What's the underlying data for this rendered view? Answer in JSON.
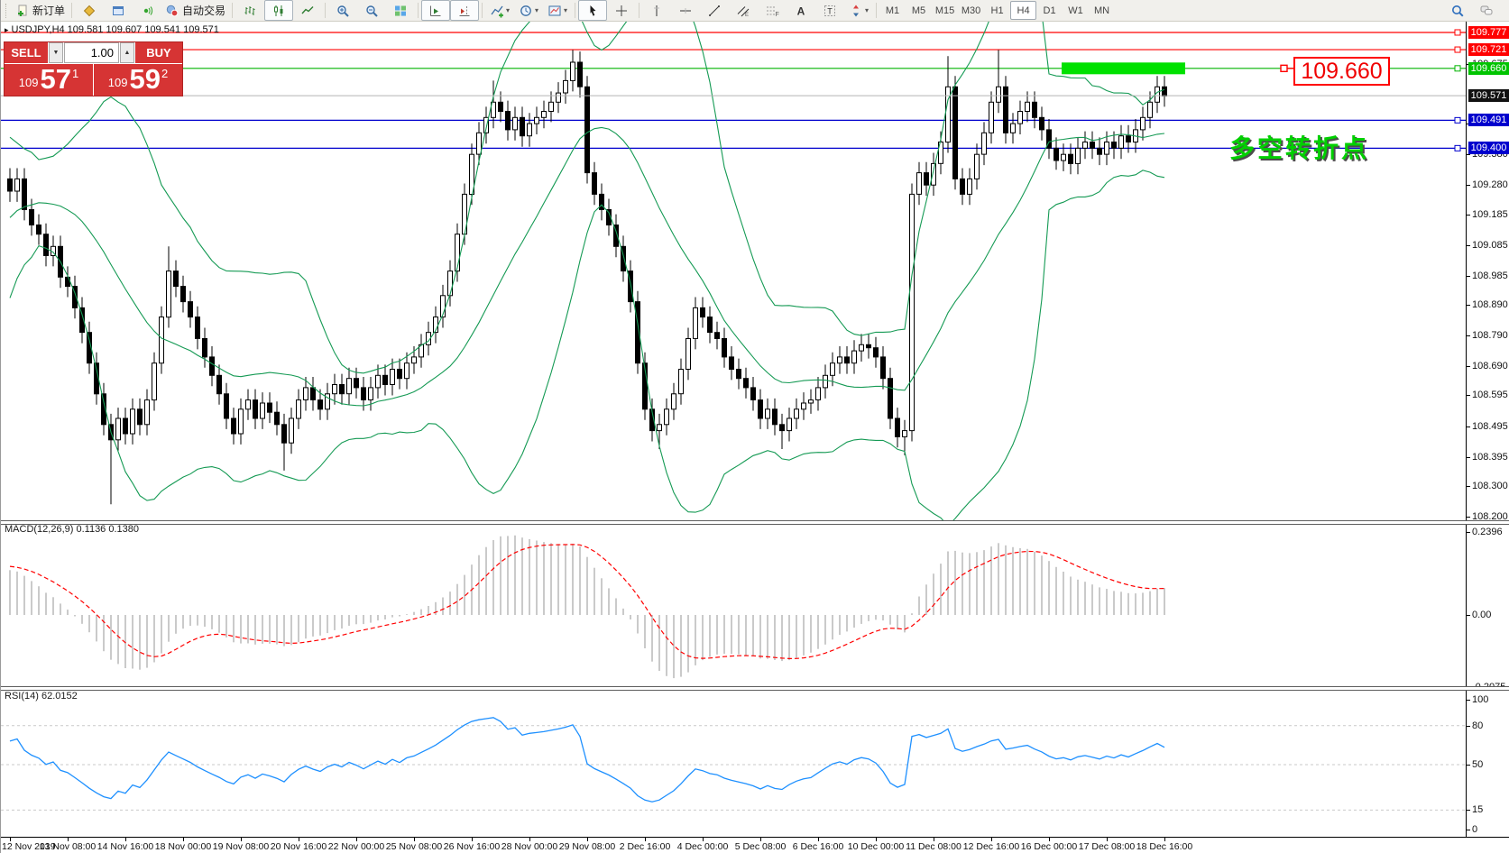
{
  "toolbar": {
    "groups": [
      {
        "items": [
          {
            "name": "new-order-button",
            "icon": "doc-plus",
            "label": "新订单"
          }
        ]
      },
      {
        "items": [
          {
            "name": "market-watch-button",
            "icon": "gold-book"
          },
          {
            "name": "data-window-button",
            "icon": "blue-window"
          },
          {
            "name": "navigator-button",
            "icon": "signal"
          },
          {
            "name": "autotrading-button",
            "icon": "autotrade",
            "label": "自动交易"
          }
        ]
      },
      {
        "items": [
          {
            "name": "bar-chart-button",
            "icon": "bars"
          },
          {
            "name": "candle-chart-button",
            "icon": "candles",
            "active": true
          },
          {
            "name": "line-chart-button",
            "icon": "linechart"
          }
        ]
      },
      {
        "items": [
          {
            "name": "zoom-in-button",
            "icon": "zoom-in"
          },
          {
            "name": "zoom-out-button",
            "icon": "zoom-out"
          },
          {
            "name": "tile-windows-button",
            "icon": "tiles"
          }
        ]
      },
      {
        "items": [
          {
            "name": "auto-scroll-button",
            "icon": "autoscroll",
            "active": true
          },
          {
            "name": "chart-shift-button",
            "icon": "shift",
            "active": true
          }
        ]
      },
      {
        "items": [
          {
            "name": "indicators-button",
            "icon": "indicator",
            "dropdown": true
          },
          {
            "name": "periods-button",
            "icon": "clock",
            "dropdown": true
          },
          {
            "name": "templates-button",
            "icon": "template",
            "dropdown": true
          }
        ]
      },
      {
        "items": [
          {
            "name": "cursor-button",
            "icon": "cursor",
            "active": true
          },
          {
            "name": "crosshair-button",
            "icon": "crosshair"
          }
        ]
      },
      {
        "items": [
          {
            "name": "vline-button",
            "icon": "vline"
          },
          {
            "name": "hline-button",
            "icon": "hline"
          },
          {
            "name": "trendline-button",
            "icon": "tline"
          },
          {
            "name": "channel-button",
            "icon": "channel"
          },
          {
            "name": "fibonacci-button",
            "icon": "fibo"
          },
          {
            "name": "text-button",
            "icon": "textA"
          },
          {
            "name": "label-button",
            "icon": "textT"
          },
          {
            "name": "arrows-button",
            "icon": "arrows",
            "dropdown": true
          }
        ]
      }
    ],
    "timeframes": [
      "M1",
      "M5",
      "M15",
      "M30",
      "H1",
      "H4",
      "D1",
      "W1",
      "MN"
    ],
    "active_timeframe": "H4",
    "right_icons": [
      {
        "name": "search-icon",
        "icon": "search"
      },
      {
        "name": "chat-icon",
        "icon": "chat"
      }
    ]
  },
  "chart": {
    "symbol_marker": "▸",
    "symbol_info": "USDJPY,H4  109.581 109.607 109.541 109.571",
    "annotation": {
      "text": "多空转折点",
      "color": "#00d000"
    },
    "callout": {
      "text": "109.660",
      "color": "#f00000"
    }
  },
  "trade_panel": {
    "sell_label": "SELL",
    "buy_label": "BUY",
    "volume": "1.00",
    "spin_down": "▼",
    "spin_up": "▲",
    "sell_price": {
      "prefix": "109",
      "big": "57",
      "sup": "1"
    },
    "buy_price": {
      "prefix": "109",
      "big": "59",
      "sup": "2"
    }
  },
  "indicators": {
    "macd": {
      "label": "MACD(12,26,9) 0.1136 0.1380",
      "fast": 12,
      "slow": 26,
      "signal": 9,
      "main_value": 0.1136,
      "signal_value": 0.138,
      "scale": [
        {
          "label": "0.2396",
          "value": 0.2396
        },
        {
          "label": "0.00",
          "value": 0.0
        },
        {
          "label": "-0.2075",
          "value": -0.2075
        }
      ]
    },
    "rsi": {
      "label": "RSI(14) 62.0152",
      "period": 14,
      "value": 62.0152,
      "scale": [
        {
          "label": "100",
          "value": 100
        },
        {
          "label": "80",
          "value": 80
        },
        {
          "label": "50",
          "value": 50
        },
        {
          "label": "15",
          "value": 15
        },
        {
          "label": "0",
          "value": 0
        }
      ],
      "dashed_levels": [
        80,
        50,
        15
      ]
    },
    "bollinger": {
      "period": 20,
      "deviation": 2
    }
  },
  "chart_data": {
    "type": "candlestick",
    "symbol": "USDJPY",
    "timeframe": "H4",
    "title": "USDJPY,H4",
    "ohlc_current": {
      "open": 109.581,
      "high": 109.607,
      "low": 109.541,
      "close": 109.571
    },
    "ylim": [
      108.2,
      109.812
    ],
    "y_ticks": [
      {
        "label": "109.675",
        "value": 109.675
      },
      {
        "label": "109.480",
        "value": 109.48
      },
      {
        "label": "109.380",
        "value": 109.38
      },
      {
        "label": "109.280",
        "value": 109.28
      },
      {
        "label": "109.185",
        "value": 109.185
      },
      {
        "label": "109.085",
        "value": 109.085
      },
      {
        "label": "108.985",
        "value": 108.985
      },
      {
        "label": "108.890",
        "value": 108.89
      },
      {
        "label": "108.790",
        "value": 108.79
      },
      {
        "label": "108.690",
        "value": 108.69
      },
      {
        "label": "108.595",
        "value": 108.595
      },
      {
        "label": "108.495",
        "value": 108.495
      },
      {
        "label": "108.395",
        "value": 108.395
      },
      {
        "label": "108.300",
        "value": 108.3
      },
      {
        "label": "108.200",
        "value": 108.2
      }
    ],
    "x_labels": [
      "12 Nov 2019",
      "13 Nov 08:00",
      "14 Nov 16:00",
      "18 Nov 00:00",
      "19 Nov 08:00",
      "20 Nov 16:00",
      "22 Nov 00:00",
      "25 Nov 08:00",
      "26 Nov 16:00",
      "28 Nov 00:00",
      "29 Nov 08:00",
      "2 Dec 16:00",
      "4 Dec 00:00",
      "5 Dec 08:00",
      "6 Dec 16:00",
      "10 Dec 00:00",
      "11 Dec 08:00",
      "12 Dec 16:00",
      "16 Dec 00:00",
      "17 Dec 08:00",
      "18 Dec 16:00"
    ],
    "bars_per_label": 8,
    "open_first": 109.3,
    "default_wick": 0.035,
    "pre_closes": [
      108.62,
      108.68,
      108.75,
      108.7,
      108.8,
      108.88,
      108.85,
      108.95,
      109.02,
      108.98,
      109.08,
      109.15,
      109.1,
      109.2,
      109.18,
      109.25,
      109.3,
      109.26,
      109.22,
      109.28,
      109.32,
      109.26,
      109.3,
      109.24,
      109.28
    ],
    "closes": [
      109.26,
      109.3,
      109.2,
      109.15,
      109.12,
      109.05,
      109.08,
      108.98,
      108.95,
      108.88,
      108.8,
      108.7,
      108.6,
      108.5,
      108.45,
      108.52,
      108.47,
      108.55,
      108.5,
      108.58,
      108.7,
      108.85,
      109.0,
      108.95,
      108.9,
      108.85,
      108.78,
      108.72,
      108.66,
      108.6,
      108.52,
      108.47,
      108.55,
      108.58,
      108.52,
      108.57,
      108.54,
      108.5,
      108.44,
      108.52,
      108.58,
      108.62,
      108.58,
      108.55,
      108.6,
      108.63,
      108.6,
      108.65,
      108.62,
      108.58,
      108.62,
      108.66,
      108.63,
      108.68,
      108.65,
      108.7,
      108.72,
      108.76,
      108.8,
      108.85,
      108.92,
      109.0,
      109.12,
      109.25,
      109.38,
      109.45,
      109.5,
      109.55,
      109.52,
      109.46,
      109.5,
      109.44,
      109.48,
      109.5,
      109.52,
      109.55,
      109.58,
      109.62,
      109.68,
      109.6,
      109.32,
      109.25,
      109.2,
      109.15,
      109.08,
      109.0,
      108.9,
      108.7,
      108.55,
      108.48,
      108.5,
      108.55,
      108.6,
      108.68,
      108.78,
      108.88,
      108.85,
      108.8,
      108.78,
      108.72,
      108.68,
      108.65,
      108.62,
      108.58,
      108.52,
      108.55,
      108.5,
      108.48,
      108.52,
      108.55,
      108.57,
      108.58,
      108.62,
      108.66,
      108.7,
      108.72,
      108.7,
      108.74,
      108.76,
      108.75,
      108.72,
      108.65,
      108.52,
      108.46,
      108.48,
      109.25,
      109.32,
      109.28,
      109.35,
      109.42,
      109.6,
      109.3,
      109.25,
      109.3,
      109.38,
      109.45,
      109.55,
      109.6,
      109.45,
      109.48,
      109.52,
      109.55,
      109.5,
      109.46,
      109.4,
      109.36,
      109.38,
      109.35,
      109.4,
      109.42,
      109.4,
      109.38,
      109.42,
      109.4,
      109.44,
      109.42,
      109.46,
      109.5,
      109.55,
      109.6,
      109.57
    ],
    "spikes": {
      "14": {
        "l": 108.24
      },
      "22": {
        "h": 109.08
      },
      "38": {
        "l": 108.35
      },
      "67": {
        "h": 109.62
      },
      "78": {
        "h": 109.72
      },
      "90": {
        "l": 108.42
      },
      "107": {
        "l": 108.42
      },
      "124": {
        "l": 108.4
      },
      "130": {
        "h": 109.7
      },
      "137": {
        "h": 109.72
      },
      "145": {
        "l": 109.33
      }
    },
    "levels": [
      {
        "label": "109.777",
        "value": 109.777,
        "color": "#ff0000"
      },
      {
        "label": "109.721",
        "value": 109.721,
        "color": "#ff0000"
      },
      {
        "label": "109.660",
        "value": 109.66,
        "color": "#00b400",
        "badge": "#00c400"
      },
      {
        "label": "109.491",
        "value": 109.491,
        "color": "#0000cd"
      },
      {
        "label": "109.400",
        "value": 109.4,
        "color": "#0000cd"
      }
    ],
    "current_price": {
      "label": "109.571",
      "value": 109.571,
      "badge": "#111111",
      "line": "#b4b4b4"
    },
    "highlight_rect": {
      "price": 109.66,
      "color": "#00e100"
    },
    "colors": {
      "bull": "#ffffff",
      "bear": "#000000",
      "outline": "#000000",
      "bollinger": "#159a54",
      "macd_hist": "#bdbdbd",
      "macd_signal": "#ff0000",
      "rsi_line": "#1e90ff"
    }
  }
}
